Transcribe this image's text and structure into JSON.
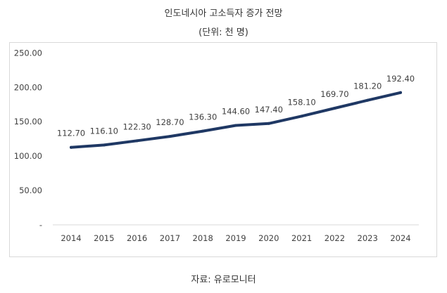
{
  "chart_data": {
    "type": "line",
    "title": "인도네시아 고소득자 증가 전망",
    "subtitle": "(단위: 천 명)",
    "source": "자료: 유로모니터",
    "categories": [
      "2014",
      "2015",
      "2016",
      "2017",
      "2018",
      "2019",
      "2020",
      "2021",
      "2022",
      "2023",
      "2024"
    ],
    "series": [
      {
        "name": "고소득자",
        "values": [
          112.7,
          116.1,
          122.3,
          128.7,
          136.3,
          144.6,
          147.4,
          158.1,
          169.7,
          181.2,
          192.4
        ]
      }
    ],
    "data_labels": [
      "112.70",
      "116.10",
      "122.30",
      "128.70",
      "136.30",
      "144.60",
      "147.40",
      "158.10",
      "169.70",
      "181.20",
      "192.40"
    ],
    "y_ticks": [
      "-",
      "50.00",
      "100.00",
      "150.00",
      "200.00",
      "250.00"
    ],
    "ylim": [
      0,
      250
    ],
    "grid": false,
    "line_color": "#1f3864"
  }
}
